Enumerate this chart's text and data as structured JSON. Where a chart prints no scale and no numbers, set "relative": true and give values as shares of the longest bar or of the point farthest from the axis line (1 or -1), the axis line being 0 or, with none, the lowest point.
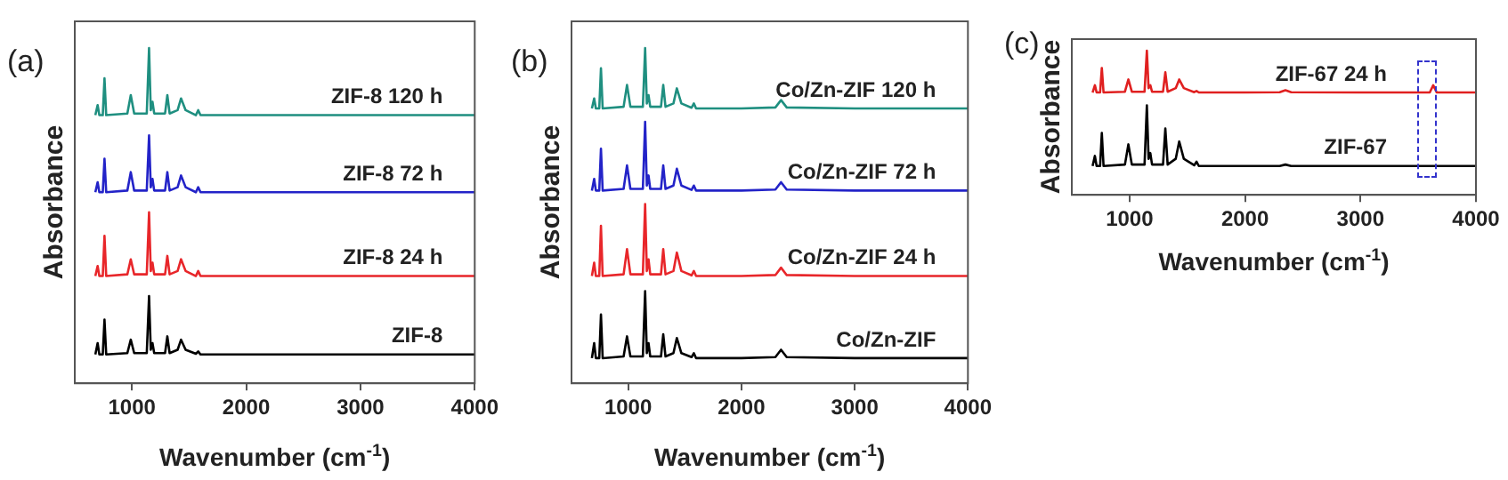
{
  "chart_data": [
    {
      "type": "line",
      "title": "(a)",
      "xlabel": "Wavenumber (cm$^{-1}$)",
      "ylabel": "Absorbance",
      "relative": true,
      "xlim": [
        500,
        4000
      ],
      "xticks": [
        1000,
        2000,
        3000,
        4000
      ],
      "legend": false,
      "x": [
        680,
        700,
        715,
        745,
        760,
        775,
        960,
        990,
        1020,
        1130,
        1150,
        1165,
        1180,
        1195,
        1290,
        1310,
        1330,
        1400,
        1430,
        1470,
        1560,
        1580,
        1600,
        2000,
        3000,
        4000
      ],
      "series": [
        {
          "name": "ZIF-8",
          "color": "#000000",
          "values": [
            0.086,
            0.12,
            0.086,
            0.086,
            0.19,
            0.086,
            0.09,
            0.13,
            0.09,
            0.09,
            0.26,
            0.1,
            0.12,
            0.09,
            0.09,
            0.14,
            0.09,
            0.1,
            0.13,
            0.1,
            0.088,
            0.095,
            0.086,
            0.086,
            0.086,
            0.086
          ]
        },
        {
          "name": "ZIF-8 24 h",
          "color": "#e8262a",
          "values": [
            0.32,
            0.35,
            0.32,
            0.32,
            0.44,
            0.32,
            0.325,
            0.37,
            0.325,
            0.325,
            0.51,
            0.335,
            0.36,
            0.325,
            0.325,
            0.38,
            0.325,
            0.335,
            0.37,
            0.335,
            0.32,
            0.335,
            0.32,
            0.32,
            0.32,
            0.32
          ]
        },
        {
          "name": "ZIF-8 72 h",
          "color": "#2323c8",
          "values": [
            0.57,
            0.6,
            0.57,
            0.57,
            0.67,
            0.57,
            0.575,
            0.63,
            0.575,
            0.575,
            0.74,
            0.585,
            0.61,
            0.575,
            0.575,
            0.63,
            0.575,
            0.585,
            0.62,
            0.585,
            0.57,
            0.585,
            0.57,
            0.57,
            0.57,
            0.57
          ]
        },
        {
          "name": "ZIF-8 120 h",
          "color": "#1f8f80",
          "values": [
            0.8,
            0.83,
            0.8,
            0.8,
            0.91,
            0.8,
            0.805,
            0.86,
            0.805,
            0.805,
            1.0,
            0.815,
            0.84,
            0.805,
            0.805,
            0.86,
            0.805,
            0.815,
            0.85,
            0.815,
            0.8,
            0.815,
            0.8,
            0.8,
            0.8,
            0.8
          ]
        }
      ]
    },
    {
      "type": "line",
      "title": "(b)",
      "xlabel": "Wavenumber (cm$^{-1}$)",
      "ylabel": "Absorbance",
      "relative": true,
      "xlim": [
        500,
        4000
      ],
      "xticks": [
        1000,
        2000,
        3000,
        4000
      ],
      "legend": false,
      "x": [
        680,
        700,
        715,
        745,
        760,
        775,
        960,
        990,
        1020,
        1130,
        1150,
        1165,
        1180,
        1195,
        1290,
        1310,
        1330,
        1400,
        1430,
        1470,
        1560,
        1580,
        1600,
        2000,
        2300,
        2350,
        2400,
        3000,
        4000
      ],
      "series": [
        {
          "name": "Co/Zn-ZIF",
          "color": "#000000",
          "values": [
            0.075,
            0.12,
            0.075,
            0.075,
            0.205,
            0.075,
            0.08,
            0.14,
            0.08,
            0.08,
            0.275,
            0.09,
            0.12,
            0.08,
            0.08,
            0.146,
            0.08,
            0.09,
            0.135,
            0.09,
            0.078,
            0.09,
            0.075,
            0.075,
            0.078,
            0.1,
            0.078,
            0.075,
            0.075
          ]
        },
        {
          "name": "Co/Zn-ZIF 24 h",
          "color": "#e8262a",
          "values": [
            0.32,
            0.36,
            0.32,
            0.32,
            0.47,
            0.32,
            0.325,
            0.4,
            0.325,
            0.325,
            0.535,
            0.335,
            0.37,
            0.325,
            0.325,
            0.4,
            0.325,
            0.335,
            0.39,
            0.335,
            0.322,
            0.335,
            0.32,
            0.32,
            0.323,
            0.345,
            0.323,
            0.32,
            0.32
          ]
        },
        {
          "name": "Co/Zn-ZIF 72 h",
          "color": "#2323c8",
          "values": [
            0.575,
            0.61,
            0.575,
            0.575,
            0.7,
            0.575,
            0.58,
            0.65,
            0.58,
            0.58,
            0.78,
            0.59,
            0.62,
            0.58,
            0.58,
            0.65,
            0.58,
            0.59,
            0.64,
            0.59,
            0.577,
            0.59,
            0.575,
            0.575,
            0.578,
            0.6,
            0.578,
            0.575,
            0.575
          ]
        },
        {
          "name": "Co/Zn-ZIF 120 h",
          "color": "#1f8f80",
          "values": [
            0.82,
            0.85,
            0.82,
            0.82,
            0.94,
            0.82,
            0.825,
            0.89,
            0.825,
            0.825,
            1.0,
            0.835,
            0.86,
            0.825,
            0.825,
            0.89,
            0.825,
            0.835,
            0.88,
            0.835,
            0.822,
            0.835,
            0.82,
            0.82,
            0.823,
            0.845,
            0.823,
            0.82,
            0.82
          ]
        }
      ]
    },
    {
      "type": "line",
      "title": "(c)",
      "xlabel": "Wavenumber (cm$^{-1}$)",
      "ylabel": "Absorbance",
      "relative": true,
      "xlim": [
        500,
        4000
      ],
      "xticks": [
        1000,
        2000,
        3000,
        4000
      ],
      "legend": false,
      "x": [
        680,
        700,
        715,
        745,
        760,
        775,
        960,
        990,
        1020,
        1130,
        1150,
        1165,
        1180,
        1195,
        1290,
        1310,
        1330,
        1400,
        1430,
        1470,
        1560,
        1580,
        1600,
        2000,
        2300,
        2350,
        2400,
        3000,
        3600,
        3630,
        3660,
        4000
      ],
      "series": [
        {
          "name": "ZIF-67",
          "color": "#000000",
          "values": [
            0.2,
            0.27,
            0.2,
            0.2,
            0.43,
            0.2,
            0.21,
            0.35,
            0.21,
            0.21,
            0.62,
            0.25,
            0.29,
            0.21,
            0.21,
            0.46,
            0.21,
            0.25,
            0.37,
            0.25,
            0.205,
            0.23,
            0.2,
            0.2,
            0.2,
            0.21,
            0.2,
            0.2,
            0.2,
            0.2,
            0.2,
            0.2
          ]
        },
        {
          "name": "ZIF-67 24 h",
          "color": "#e02020",
          "values": [
            0.71,
            0.76,
            0.71,
            0.71,
            0.88,
            0.71,
            0.715,
            0.8,
            0.715,
            0.715,
            1.0,
            0.74,
            0.76,
            0.715,
            0.715,
            0.85,
            0.715,
            0.74,
            0.8,
            0.74,
            0.712,
            0.72,
            0.71,
            0.71,
            0.712,
            0.725,
            0.712,
            0.71,
            0.71,
            0.76,
            0.71,
            0.71
          ]
        }
      ]
    }
  ]
}
